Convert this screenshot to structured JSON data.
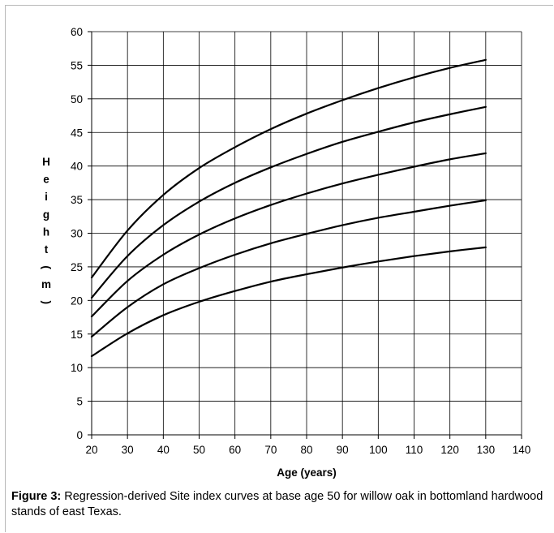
{
  "chart_data": {
    "type": "line",
    "xlabel": "Age (years)",
    "ylabel": "Height (m)",
    "xlim": [
      20,
      140
    ],
    "ylim": [
      0,
      60
    ],
    "x_ticks": [
      20,
      30,
      40,
      50,
      60,
      70,
      80,
      90,
      100,
      110,
      120,
      130,
      140
    ],
    "y_ticks": [
      0,
      5,
      10,
      15,
      20,
      25,
      30,
      35,
      40,
      45,
      50,
      55,
      60
    ],
    "grid": true,
    "legend": "none",
    "line_color": "#000000",
    "x": [
      20,
      30,
      40,
      50,
      60,
      70,
      80,
      90,
      100,
      110,
      120,
      130
    ],
    "series": [
      {
        "values": [
          11.7,
          15.1,
          17.8,
          19.8,
          21.4,
          22.8,
          23.9,
          24.9,
          25.8,
          26.6,
          27.3,
          27.9
        ]
      },
      {
        "values": [
          14.6,
          19.0,
          22.4,
          24.8,
          26.8,
          28.5,
          29.9,
          31.2,
          32.3,
          33.2,
          34.1,
          34.9
        ]
      },
      {
        "values": [
          17.6,
          22.9,
          26.8,
          29.8,
          32.2,
          34.2,
          35.9,
          37.4,
          38.7,
          39.9,
          41.0,
          41.9
        ]
      },
      {
        "values": [
          20.4,
          26.6,
          31.2,
          34.7,
          37.5,
          39.8,
          41.8,
          43.6,
          45.1,
          46.5,
          47.7,
          48.8
        ]
      },
      {
        "values": [
          23.4,
          30.4,
          35.7,
          39.7,
          42.8,
          45.5,
          47.8,
          49.8,
          51.6,
          53.2,
          54.6,
          55.8
        ]
      }
    ]
  },
  "caption": {
    "label": "Figure 3:",
    "text": " Regression-derived Site index curves at base age 50 for willow oak in bottomland hardwood stands of east Texas."
  }
}
